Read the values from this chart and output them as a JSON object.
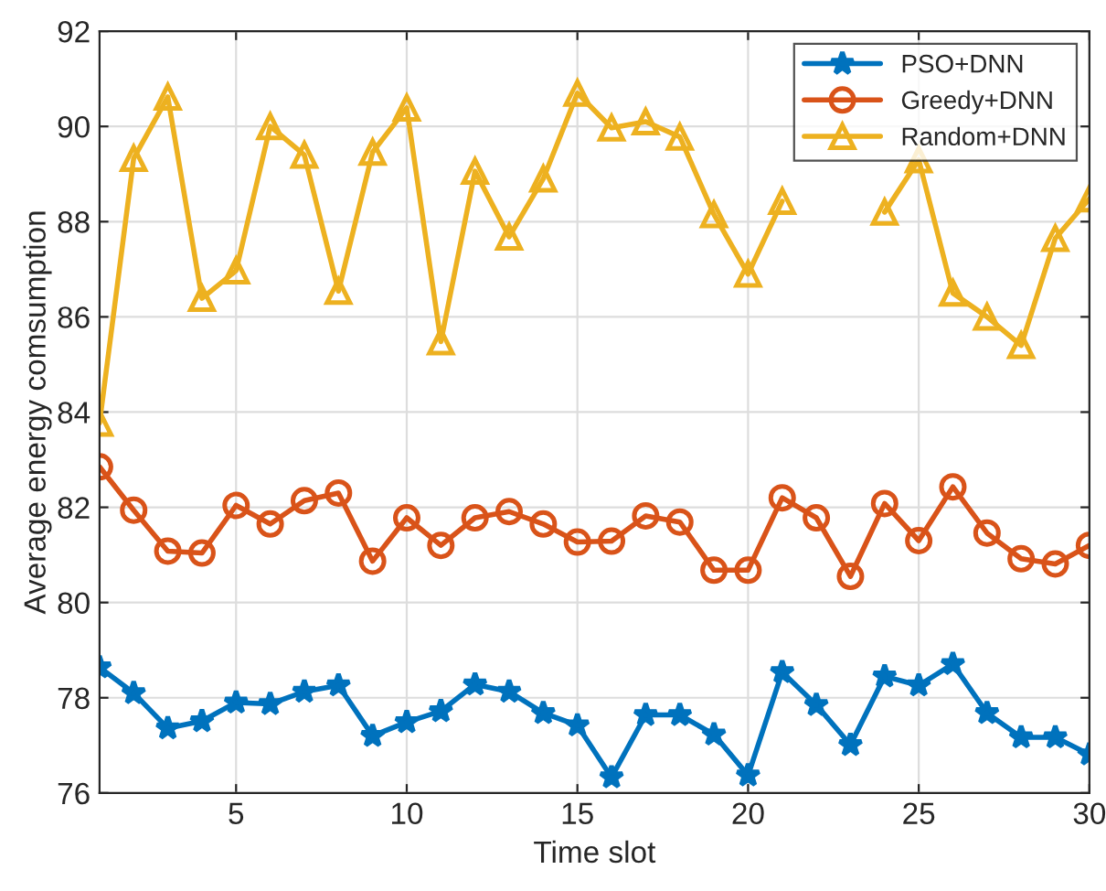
{
  "chart_data": {
    "type": "line",
    "xlabel": "Time slot",
    "ylabel": "Average energy comsumption",
    "x": [
      1,
      2,
      3,
      4,
      5,
      6,
      7,
      8,
      9,
      10,
      11,
      12,
      13,
      14,
      15,
      16,
      17,
      18,
      19,
      20,
      21,
      22,
      23,
      24,
      25,
      26,
      27,
      28,
      29,
      30
    ],
    "xlim": [
      1,
      30
    ],
    "xticks": [
      5,
      10,
      15,
      20,
      25,
      30
    ],
    "ylim": [
      76,
      92
    ],
    "yticks": [
      76,
      78,
      80,
      82,
      84,
      86,
      88,
      90,
      92
    ],
    "grid": true,
    "legend": "top right",
    "series": [
      {
        "name": "PSO+DNN",
        "color": "#0072bd",
        "marker": "star",
        "values": [
          78.64,
          78.1,
          77.36,
          77.51,
          77.9,
          77.87,
          78.13,
          78.26,
          77.2,
          77.49,
          77.72,
          78.28,
          78.13,
          77.68,
          77.42,
          76.33,
          77.64,
          77.64,
          77.23,
          76.37,
          78.54,
          77.85,
          77.01,
          78.45,
          78.26,
          78.71,
          77.68,
          77.17,
          77.17,
          76.81
        ]
      },
      {
        "name": "Greedy+DNN",
        "color": "#d95319",
        "marker": "circle",
        "values": [
          82.85,
          81.94,
          81.08,
          81.04,
          82.04,
          81.65,
          82.14,
          82.3,
          80.87,
          81.78,
          81.2,
          81.78,
          81.91,
          81.65,
          81.27,
          81.29,
          81.82,
          81.69,
          80.68,
          80.68,
          82.2,
          81.78,
          80.55,
          82.08,
          81.3,
          82.43,
          81.46,
          80.92,
          80.81,
          81.2
        ]
      },
      {
        "name": "Random+DNN",
        "color": "#edb120",
        "marker": "triangle",
        "values": [
          83.77,
          89.33,
          90.62,
          86.39,
          86.97,
          90.0,
          89.4,
          86.54,
          89.46,
          90.39,
          85.48,
          89.06,
          87.68,
          88.9,
          90.7,
          89.97,
          90.1,
          89.78,
          88.15,
          86.9,
          88.43,
          null,
          null,
          88.2,
          89.3,
          86.5,
          86.0,
          85.4,
          87.65,
          88.48
        ]
      }
    ]
  }
}
